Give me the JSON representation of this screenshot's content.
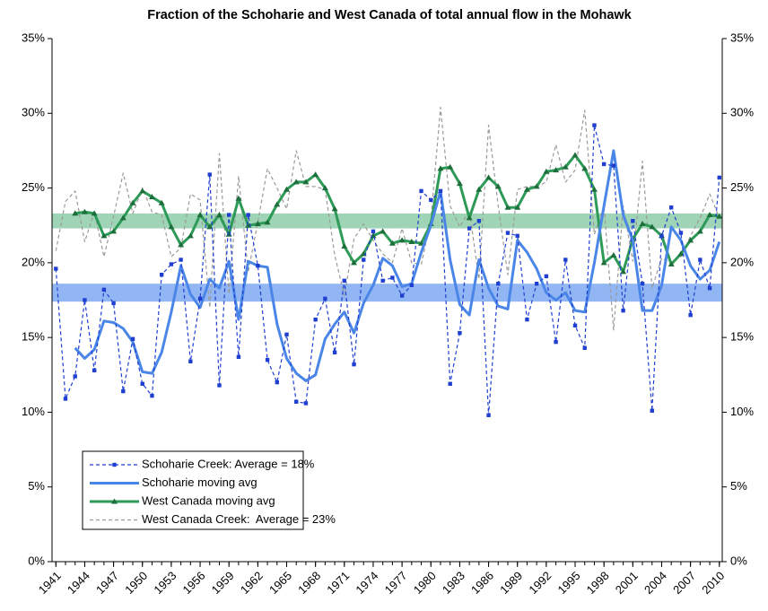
{
  "chart_data": {
    "type": "line",
    "title": "Fraction of the Schoharie and West Canada of total annual flow in the Mohawk",
    "x": [
      1941,
      1942,
      1943,
      1944,
      1945,
      1946,
      1947,
      1948,
      1949,
      1950,
      1951,
      1952,
      1953,
      1954,
      1955,
      1956,
      1957,
      1958,
      1959,
      1960,
      1961,
      1962,
      1963,
      1964,
      1965,
      1966,
      1967,
      1968,
      1969,
      1970,
      1971,
      1972,
      1973,
      1974,
      1975,
      1976,
      1977,
      1978,
      1979,
      1980,
      1981,
      1982,
      1983,
      1984,
      1985,
      1986,
      1987,
      1988,
      1989,
      1990,
      1991,
      1992,
      1993,
      1994,
      1995,
      1996,
      1997,
      1998,
      1999,
      2000,
      2001,
      2002,
      2003,
      2004,
      2005,
      2006,
      2007,
      2008,
      2009,
      2010
    ],
    "xlim": [
      1940.6,
      2010.3
    ],
    "xticks": [
      1941,
      1944,
      1947,
      1950,
      1953,
      1956,
      1959,
      1962,
      1965,
      1968,
      1971,
      1974,
      1977,
      1980,
      1983,
      1986,
      1989,
      1992,
      1995,
      1998,
      2001,
      2004,
      2007,
      2010
    ],
    "ylim": [
      0,
      35
    ],
    "yticks": [
      {
        "value": 0,
        "label": "0%"
      },
      {
        "value": 5,
        "label": "5%"
      },
      {
        "value": 10,
        "label": "10%"
      },
      {
        "value": 15,
        "label": "15%"
      },
      {
        "value": 20,
        "label": "20%"
      },
      {
        "value": 25,
        "label": "25%"
      },
      {
        "value": 30,
        "label": "30%"
      },
      {
        "value": 35,
        "label": "35%"
      }
    ],
    "y2lim": [
      0,
      35
    ],
    "y2ticks": [
      {
        "value": 0,
        "label": "0%"
      },
      {
        "value": 5,
        "label": "5%"
      },
      {
        "value": 10,
        "label": "10%"
      },
      {
        "value": 15,
        "label": "15%"
      },
      {
        "value": 20,
        "label": "20%"
      },
      {
        "value": 25,
        "label": "25%"
      },
      {
        "value": 30,
        "label": "30%"
      },
      {
        "value": 35,
        "label": "35%"
      }
    ],
    "bands": [
      {
        "from": 17.4,
        "to": 18.6,
        "color": "#6d9ef0"
      },
      {
        "from": 22.3,
        "to": 23.3,
        "color": "#7fc79d"
      }
    ],
    "legend": "lower left",
    "series": [
      {
        "name": "Schoharie Creek: Average = 18%",
        "color": "#1f3fd0",
        "dash": true,
        "marker": "square",
        "width": 1.2,
        "values": [
          19.6,
          10.9,
          12.4,
          17.5,
          12.8,
          18.2,
          17.3,
          11.4,
          14.9,
          11.9,
          11.1,
          19.2,
          19.9,
          20.2,
          13.4,
          17.6,
          25.9,
          11.8,
          23.2,
          13.7,
          23.2,
          19.8,
          13.5,
          12.0,
          15.2,
          10.7,
          10.6,
          16.2,
          17.6,
          14.0,
          18.8,
          13.2,
          20.2,
          22.1,
          18.8,
          19.0,
          17.8,
          18.5,
          24.8,
          24.2,
          24.8,
          11.9,
          15.3,
          22.3,
          22.8,
          9.8,
          18.6,
          22.0,
          21.8,
          16.2,
          18.6,
          19.1,
          14.7,
          20.2,
          15.8,
          14.3,
          29.2,
          26.6,
          26.5,
          16.8,
          22.8,
          18.6,
          10.1,
          21.8,
          23.7,
          22.0,
          16.5,
          20.2,
          18.3,
          25.7
        ]
      },
      {
        "name": "Schoharie moving avg",
        "color": "#4a86e8",
        "dash": false,
        "marker": "none",
        "width": 3,
        "values": [
          null,
          null,
          14.3,
          13.6,
          14.2,
          16.1,
          16.0,
          15.6,
          14.7,
          12.7,
          12.6,
          14.0,
          16.7,
          19.8,
          17.9,
          17.0,
          18.9,
          18.3,
          20.1,
          16.2,
          20.1,
          19.8,
          19.7,
          15.9,
          13.6,
          12.6,
          12.1,
          12.5,
          14.9,
          15.9,
          16.7,
          15.3,
          17.3,
          18.5,
          20.3,
          19.8,
          18.4,
          18.6,
          20.7,
          22.5,
          24.8,
          20.2,
          17.2,
          16.5,
          20.2,
          18.3,
          17.1,
          16.9,
          21.5,
          20.7,
          19.6,
          18.0,
          17.5,
          18.0,
          16.8,
          16.7,
          20.0,
          23.8,
          27.5,
          23.2,
          21.5,
          16.8,
          16.8,
          18.5,
          22.4,
          21.5,
          19.8,
          18.9,
          19.5,
          21.4
        ]
      },
      {
        "name": "West Canada moving avg",
        "color": "#2e9a58",
        "dash": false,
        "marker": "triangle",
        "width": 3,
        "values": [
          null,
          null,
          23.3,
          23.4,
          23.3,
          21.8,
          22.1,
          23.0,
          24.0,
          24.8,
          24.4,
          24.0,
          22.4,
          21.2,
          21.8,
          23.2,
          22.4,
          23.2,
          21.9,
          24.3,
          22.5,
          22.6,
          22.7,
          23.9,
          24.9,
          25.4,
          25.4,
          25.9,
          25.0,
          23.6,
          21.1,
          20.0,
          20.6,
          21.8,
          22.1,
          21.3,
          21.5,
          21.4,
          21.3,
          22.6,
          26.3,
          26.4,
          25.3,
          23.0,
          24.9,
          25.7,
          25.1,
          23.7,
          23.7,
          24.9,
          25.1,
          26.1,
          26.2,
          26.4,
          27.2,
          26.3,
          24.9,
          20.0,
          20.5,
          19.4,
          21.6,
          22.6,
          22.4,
          21.8,
          19.9,
          20.6,
          21.5,
          22.1,
          23.2,
          23.1
        ]
      },
      {
        "name": "West Canada Creek:  Average = 23%",
        "color": "#9a9a9a",
        "dash": true,
        "marker": "none",
        "width": 1.2,
        "values": [
          20.8,
          24.1,
          24.8,
          21.4,
          23.4,
          20.4,
          23.1,
          26.0,
          23.3,
          25.0,
          23.4,
          23.2,
          20.4,
          21.0,
          24.6,
          24.2,
          17.0,
          27.3,
          17.9,
          25.8,
          19.4,
          22.7,
          26.3,
          25.0,
          23.6,
          27.5,
          25.1,
          25.1,
          24.9,
          20.5,
          17.8,
          21.6,
          22.6,
          21.5,
          20.6,
          20.0,
          22.3,
          20.0,
          19.9,
          22.9,
          30.4,
          23.8,
          22.4,
          23.5,
          18.9,
          29.2,
          23.8,
          19.2,
          24.9,
          25.1,
          25.1,
          25.4,
          27.9,
          25.4,
          26.2,
          30.2,
          21.9,
          23.8,
          15.5,
          23.8,
          20.1,
          26.8,
          18.3,
          20.3,
          20.0,
          20.4,
          21.8,
          23.0,
          24.6,
          23.0
        ]
      }
    ]
  }
}
